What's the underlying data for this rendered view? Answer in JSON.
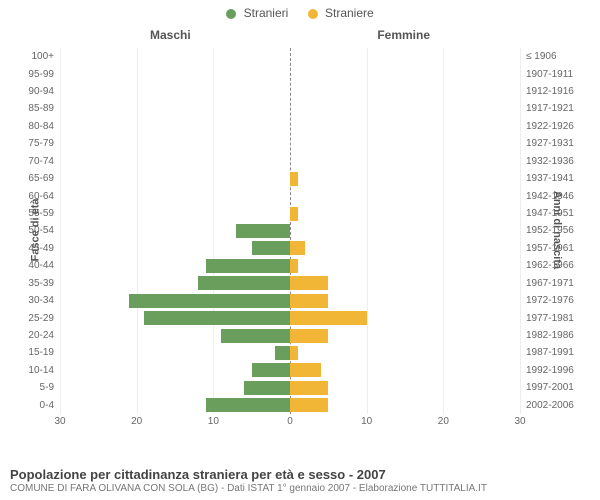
{
  "legend": {
    "male": {
      "label": "Stranieri",
      "color": "#6a9e5d"
    },
    "female": {
      "label": "Straniere",
      "color": "#f2b636"
    }
  },
  "side_titles": {
    "left": "Maschi",
    "right": "Femmine"
  },
  "axis_titles": {
    "left": "Fasce di età",
    "right": "Anni di nascita"
  },
  "chart": {
    "type": "population-pyramid",
    "xmax": 30,
    "xticks": [
      30,
      20,
      10,
      0,
      10,
      20,
      30
    ],
    "background_color": "#ffffff",
    "grid_color": "#eeeeee",
    "center_line_color": "#888888",
    "bar_height_pct": 80,
    "rows": [
      {
        "age": "100+",
        "birth": "≤ 1906",
        "m": 0,
        "f": 0
      },
      {
        "age": "95-99",
        "birth": "1907-1911",
        "m": 0,
        "f": 0
      },
      {
        "age": "90-94",
        "birth": "1912-1916",
        "m": 0,
        "f": 0
      },
      {
        "age": "85-89",
        "birth": "1917-1921",
        "m": 0,
        "f": 0
      },
      {
        "age": "80-84",
        "birth": "1922-1926",
        "m": 0,
        "f": 0
      },
      {
        "age": "75-79",
        "birth": "1927-1931",
        "m": 0,
        "f": 0
      },
      {
        "age": "70-74",
        "birth": "1932-1936",
        "m": 0,
        "f": 0
      },
      {
        "age": "65-69",
        "birth": "1937-1941",
        "m": 0,
        "f": 1
      },
      {
        "age": "60-64",
        "birth": "1942-1946",
        "m": 0,
        "f": 0
      },
      {
        "age": "55-59",
        "birth": "1947-1951",
        "m": 0,
        "f": 1
      },
      {
        "age": "50-54",
        "birth": "1952-1956",
        "m": 7,
        "f": 0
      },
      {
        "age": "45-49",
        "birth": "1957-1961",
        "m": 5,
        "f": 2
      },
      {
        "age": "40-44",
        "birth": "1962-1966",
        "m": 11,
        "f": 1
      },
      {
        "age": "35-39",
        "birth": "1967-1971",
        "m": 12,
        "f": 5
      },
      {
        "age": "30-34",
        "birth": "1972-1976",
        "m": 21,
        "f": 5
      },
      {
        "age": "25-29",
        "birth": "1977-1981",
        "m": 19,
        "f": 10
      },
      {
        "age": "20-24",
        "birth": "1982-1986",
        "m": 9,
        "f": 5
      },
      {
        "age": "15-19",
        "birth": "1987-1991",
        "m": 2,
        "f": 1
      },
      {
        "age": "10-14",
        "birth": "1992-1996",
        "m": 5,
        "f": 4
      },
      {
        "age": "5-9",
        "birth": "1997-2001",
        "m": 6,
        "f": 5
      },
      {
        "age": "0-4",
        "birth": "2002-2006",
        "m": 11,
        "f": 5
      }
    ]
  },
  "title": "Popolazione per cittadinanza straniera per età e sesso - 2007",
  "subtitle": "COMUNE DI FARA OLIVANA CON SOLA (BG) - Dati ISTAT 1° gennaio 2007 - Elaborazione TUTTITALIA.IT"
}
